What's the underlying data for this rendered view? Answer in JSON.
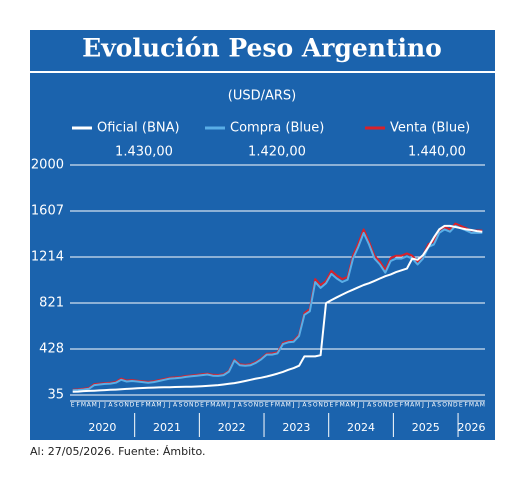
{
  "chart_data": {
    "type": "line",
    "title": "Evolución Peso Argentino",
    "subtitle": "(USD/ARS)",
    "footer": "Al: 27/05/2026. Fuente: Ámbito.",
    "categories": [
      "E",
      "F",
      "M",
      "A",
      "M",
      "J",
      "J",
      "A",
      "S",
      "O",
      "N",
      "D",
      "E",
      "F",
      "M",
      "A",
      "M",
      "J",
      "J",
      "A",
      "S",
      "O",
      "N",
      "D",
      "E",
      "F",
      "M",
      "A",
      "M",
      "J",
      "J",
      "A",
      "S",
      "O",
      "N",
      "D",
      "E",
      "F",
      "M",
      "A",
      "M",
      "J",
      "J",
      "A",
      "S",
      "O",
      "N",
      "D",
      "E",
      "F",
      "M",
      "A",
      "M",
      "J",
      "J",
      "A",
      "S",
      "O",
      "N",
      "D",
      "E",
      "F",
      "M",
      "A",
      "M",
      "J",
      "J",
      "A",
      "S",
      "O",
      "N",
      "D",
      "E",
      "F",
      "M",
      "A",
      "M"
    ],
    "years": [
      "2020",
      "2021",
      "2022",
      "2023",
      "2024",
      "2025",
      "2026"
    ],
    "ylim": [
      35,
      2000
    ],
    "yticks": [
      35,
      428,
      821,
      1214,
      1607,
      2000
    ],
    "grid": true,
    "series": [
      {
        "name": "Venta (Blue)",
        "color": "#d8212a",
        "last_value": 1440,
        "last_value_label": "1.440,00",
        "values": [
          80,
          83,
          88,
          95,
          128,
          132,
          137,
          139,
          147,
          175,
          158,
          162,
          157,
          152,
          147,
          152,
          162,
          172,
          182,
          185,
          189,
          197,
          202,
          207,
          212,
          218,
          208,
          206,
          212,
          242,
          338,
          298,
          292,
          298,
          318,
          348,
          388,
          390,
          400,
          480,
          495,
          500,
          550,
          735,
          770,
          1025,
          975,
          1010,
          1095,
          1055,
          1025,
          1045,
          1225,
          1330,
          1450,
          1345,
          1225,
          1175,
          1105,
          1205,
          1225,
          1225,
          1245,
          1225,
          1175,
          1225,
          1325,
          1345,
          1445,
          1470,
          1450,
          1500,
          1480,
          1460,
          1440,
          1440,
          1440
        ]
      },
      {
        "name": "Compra (Blue)",
        "color": "#5aaee6",
        "last_value": 1420,
        "last_value_label": "1.420,00",
        "values": [
          75,
          78,
          82,
          88,
          120,
          125,
          130,
          132,
          140,
          165,
          150,
          155,
          150,
          145,
          140,
          145,
          155,
          165,
          175,
          178,
          182,
          190,
          195,
          200,
          205,
          210,
          200,
          198,
          205,
          235,
          330,
          290,
          285,
          290,
          310,
          340,
          380,
          380,
          390,
          470,
          485,
          490,
          540,
          720,
          750,
          1000,
          950,
          990,
          1070,
          1030,
          1000,
          1020,
          1200,
          1300,
          1420,
          1320,
          1200,
          1150,
          1080,
          1180,
          1200,
          1200,
          1220,
          1200,
          1150,
          1200,
          1300,
          1320,
          1420,
          1450,
          1430,
          1480,
          1460,
          1440,
          1420,
          1420,
          1420
        ]
      },
      {
        "name": "Oficial (BNA)",
        "color": "#ffffff",
        "last_value": 1430,
        "last_value_label": "1.430,00",
        "values": [
          63,
          64,
          68,
          70,
          72,
          74,
          77,
          79,
          81,
          84,
          87,
          90,
          93,
          95,
          97,
          98,
          100,
          101,
          102,
          103,
          104,
          105,
          106,
          108,
          110,
          113,
          116,
          120,
          125,
          131,
          137,
          145,
          155,
          165,
          175,
          183,
          193,
          205,
          218,
          232,
          250,
          265,
          285,
          365,
          365,
          365,
          375,
          820,
          846,
          870,
          893,
          915,
          935,
          955,
          975,
          990,
          1010,
          1030,
          1050,
          1065,
          1085,
          1100,
          1115,
          1200,
          1190,
          1230,
          1300,
          1380,
          1450,
          1480,
          1480,
          1470,
          1460,
          1450,
          1445,
          1435,
          1430
        ]
      }
    ]
  }
}
